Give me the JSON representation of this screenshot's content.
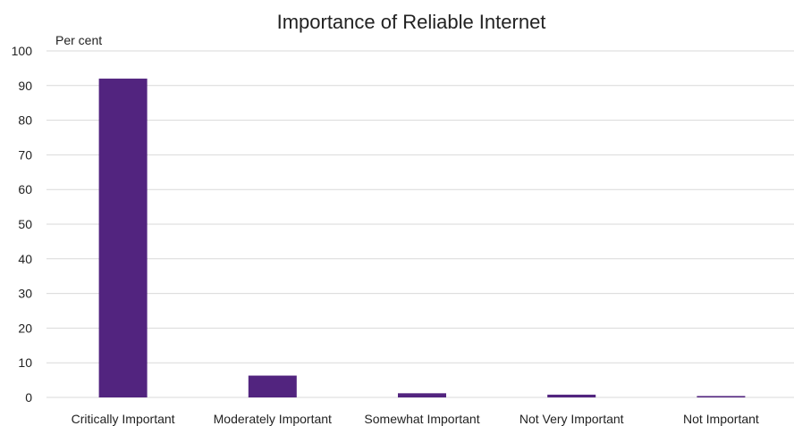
{
  "chart_data": {
    "type": "bar",
    "title": "Importance of Reliable Internet",
    "ylabel": "Per cent",
    "xlabel": "",
    "categories": [
      "Critically Important",
      "Moderately Important",
      "Somewhat Important",
      "Not Very Important",
      "Not Important"
    ],
    "values": [
      92,
      6.3,
      1.2,
      0.8,
      0.4
    ],
    "ylim": [
      0,
      100
    ],
    "yticks": [
      "0",
      "10",
      "20",
      "30",
      "40",
      "50",
      "60",
      "70",
      "80",
      "90",
      "100"
    ],
    "grid": true,
    "legend": "none",
    "bar_color": "#52247f",
    "grid_color": "#d9d9d9"
  }
}
